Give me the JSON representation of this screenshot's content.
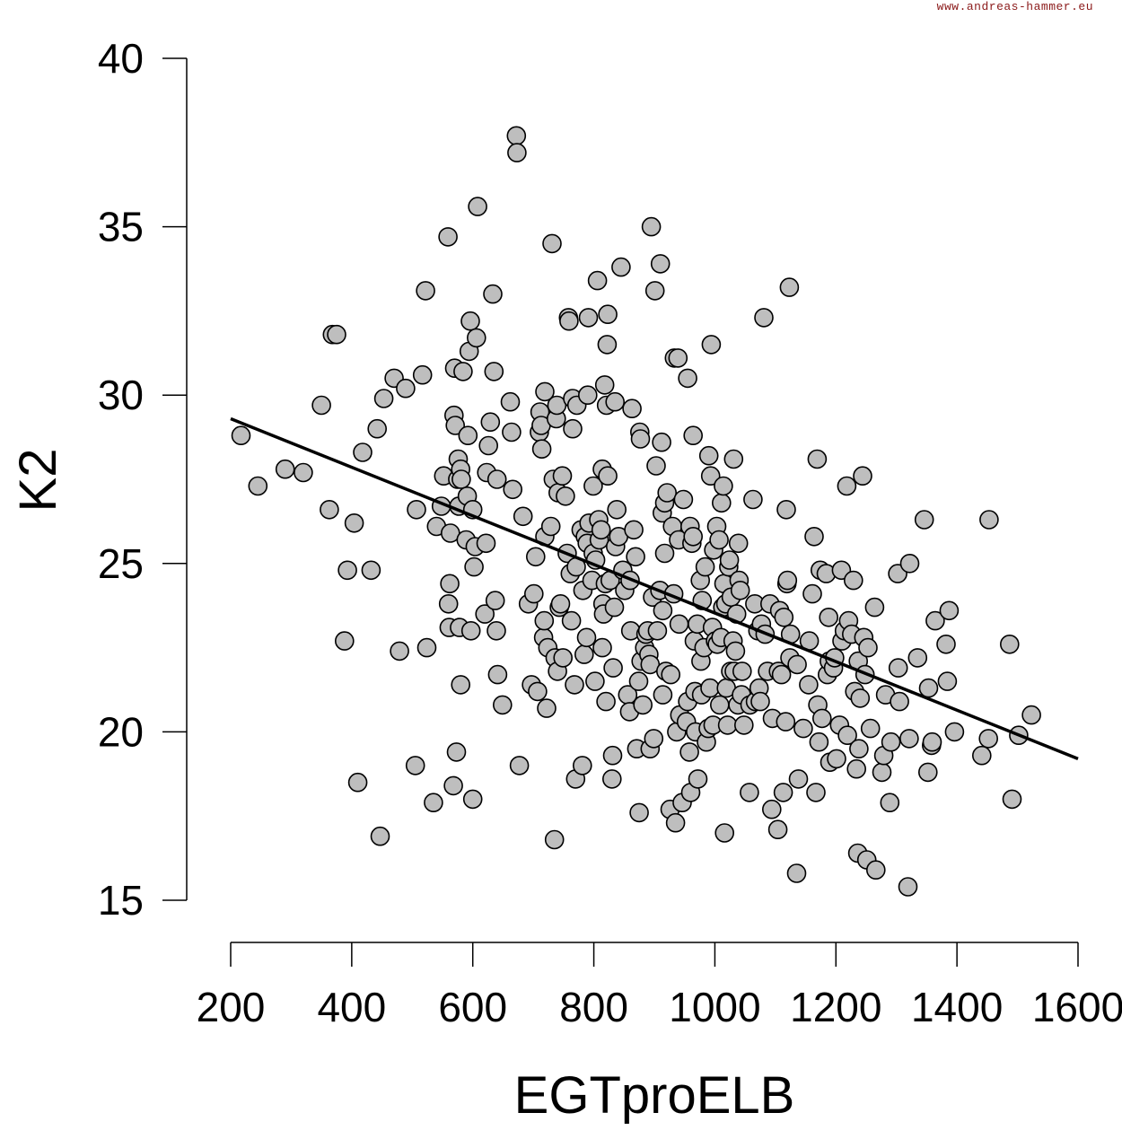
{
  "watermark": "www.andreas-hammer.eu",
  "chart_data": {
    "type": "scatter",
    "xlabel": "EGTproELB",
    "ylabel": "K2",
    "xlim": [
      200,
      1600
    ],
    "ylim": [
      15,
      40
    ],
    "xticks": [
      200,
      400,
      600,
      800,
      1000,
      1200,
      1400,
      1600
    ],
    "yticks": [
      15,
      20,
      25,
      30,
      35,
      40
    ],
    "grid": false,
    "trendline": {
      "x": [
        200,
        1600
      ],
      "y": [
        29.3,
        19.2
      ]
    },
    "points": [
      [
        217,
        28.8
      ],
      [
        245,
        27.3
      ],
      [
        290,
        27.8
      ],
      [
        320,
        27.7
      ],
      [
        350,
        29.7
      ],
      [
        363,
        26.6
      ],
      [
        368,
        31.8
      ],
      [
        375,
        31.8
      ],
      [
        388,
        22.7
      ],
      [
        393,
        24.8
      ],
      [
        404,
        26.2
      ],
      [
        410,
        18.5
      ],
      [
        418,
        28.3
      ],
      [
        432,
        24.8
      ],
      [
        442,
        29.0
      ],
      [
        447,
        16.9
      ],
      [
        453,
        29.9
      ],
      [
        470,
        30.5
      ],
      [
        479,
        22.4
      ],
      [
        489,
        30.2
      ],
      [
        505,
        19.0
      ],
      [
        507,
        26.6
      ],
      [
        517,
        30.6
      ],
      [
        522,
        33.1
      ],
      [
        524,
        22.5
      ],
      [
        535,
        17.9
      ],
      [
        540,
        26.1
      ],
      [
        548,
        26.7
      ],
      [
        552,
        27.6
      ],
      [
        559,
        34.7
      ],
      [
        560,
        23.8
      ],
      [
        561,
        23.1
      ],
      [
        562,
        24.4
      ],
      [
        563,
        25.9
      ],
      [
        568,
        18.4
      ],
      [
        569,
        29.4
      ],
      [
        570,
        30.8
      ],
      [
        571,
        29.1
      ],
      [
        573,
        19.4
      ],
      [
        575,
        27.5
      ],
      [
        576,
        28.1
      ],
      [
        577,
        26.7
      ],
      [
        578,
        23.1
      ],
      [
        580,
        21.4
      ],
      [
        580,
        27.8
      ],
      [
        581,
        27.5
      ],
      [
        584,
        30.7
      ],
      [
        589,
        25.7
      ],
      [
        591,
        27.0
      ],
      [
        592,
        28.8
      ],
      [
        594,
        31.3
      ],
      [
        596,
        32.2
      ],
      [
        597,
        23.0
      ],
      [
        600,
        18.0
      ],
      [
        600,
        26.6
      ],
      [
        602,
        24.9
      ],
      [
        604,
        25.5
      ],
      [
        606,
        31.7
      ],
      [
        608,
        35.6
      ],
      [
        620,
        23.5
      ],
      [
        622,
        25.6
      ],
      [
        623,
        27.7
      ],
      [
        626,
        28.5
      ],
      [
        629,
        29.2
      ],
      [
        633,
        33.0
      ],
      [
        635,
        30.7
      ],
      [
        637,
        23.9
      ],
      [
        639,
        23.0
      ],
      [
        640,
        27.5
      ],
      [
        641,
        21.7
      ],
      [
        649,
        20.8
      ],
      [
        662,
        29.8
      ],
      [
        664,
        28.9
      ],
      [
        666,
        27.2
      ],
      [
        672,
        37.7
      ],
      [
        673,
        37.2
      ],
      [
        677,
        19.0
      ],
      [
        683,
        26.4
      ],
      [
        692,
        23.8
      ],
      [
        697,
        21.4
      ],
      [
        701,
        24.1
      ],
      [
        704,
        25.2
      ],
      [
        707,
        21.2
      ],
      [
        710,
        28.9
      ],
      [
        711,
        29.5
      ],
      [
        713,
        29.1
      ],
      [
        714,
        28.4
      ],
      [
        717,
        22.8
      ],
      [
        718,
        23.3
      ],
      [
        719,
        25.8
      ],
      [
        719,
        30.1
      ],
      [
        722,
        20.7
      ],
      [
        724,
        22.5
      ],
      [
        729,
        26.1
      ],
      [
        731,
        34.5
      ],
      [
        733,
        27.5
      ],
      [
        735,
        16.8
      ],
      [
        736,
        22.2
      ],
      [
        738,
        29.3
      ],
      [
        739,
        29.7
      ],
      [
        740,
        21.8
      ],
      [
        741,
        27.1
      ],
      [
        743,
        23.7
      ],
      [
        745,
        23.8
      ],
      [
        748,
        27.6
      ],
      [
        749,
        22.2
      ],
      [
        753,
        27.0
      ],
      [
        756,
        25.3
      ],
      [
        758,
        32.3
      ],
      [
        759,
        32.2
      ],
      [
        761,
        24.7
      ],
      [
        763,
        23.3
      ],
      [
        765,
        29.9
      ],
      [
        765,
        29.0
      ],
      [
        768,
        21.4
      ],
      [
        770,
        18.6
      ],
      [
        771,
        24.9
      ],
      [
        772,
        29.7
      ],
      [
        779,
        26.0
      ],
      [
        781,
        19.0
      ],
      [
        782,
        24.2
      ],
      [
        784,
        22.3
      ],
      [
        786,
        25.8
      ],
      [
        788,
        22.8
      ],
      [
        789,
        25.6
      ],
      [
        790,
        30.0
      ],
      [
        791,
        32.3
      ],
      [
        792,
        26.2
      ],
      [
        797,
        24.5
      ],
      [
        799,
        27.3
      ],
      [
        799,
        25.3
      ],
      [
        802,
        21.5
      ],
      [
        803,
        25.1
      ],
      [
        806,
        33.4
      ],
      [
        808,
        26.3
      ],
      [
        809,
        25.7
      ],
      [
        812,
        26.0
      ],
      [
        814,
        27.8
      ],
      [
        814,
        22.5
      ],
      [
        815,
        23.8
      ],
      [
        816,
        23.5
      ],
      [
        818,
        30.3
      ],
      [
        819,
        24.4
      ],
      [
        820,
        20.9
      ],
      [
        821,
        29.7
      ],
      [
        822,
        31.5
      ],
      [
        823,
        32.4
      ],
      [
        823,
        27.6
      ],
      [
        827,
        24.5
      ],
      [
        830,
        18.6
      ],
      [
        831,
        19.3
      ],
      [
        832,
        21.9
      ],
      [
        834,
        23.7
      ],
      [
        835,
        29.8
      ],
      [
        836,
        25.5
      ],
      [
        838,
        26.6
      ],
      [
        841,
        25.8
      ],
      [
        845,
        33.8
      ],
      [
        848,
        24.8
      ],
      [
        851,
        24.2
      ],
      [
        856,
        21.1
      ],
      [
        859,
        20.6
      ],
      [
        860,
        24.5
      ],
      [
        861,
        23.0
      ],
      [
        863,
        29.6
      ],
      [
        866,
        26.0
      ],
      [
        869,
        25.2
      ],
      [
        871,
        19.5
      ],
      [
        874,
        21.5
      ],
      [
        875,
        17.6
      ],
      [
        876,
        28.9
      ],
      [
        877,
        28.7
      ],
      [
        878,
        22.1
      ],
      [
        881,
        20.8
      ],
      [
        884,
        22.5
      ],
      [
        886,
        22.9
      ],
      [
        889,
        23.0
      ],
      [
        891,
        22.3
      ],
      [
        893,
        19.5
      ],
      [
        893,
        22.0
      ],
      [
        895,
        35.0
      ],
      [
        897,
        24.0
      ],
      [
        899,
        19.8
      ],
      [
        901,
        33.1
      ],
      [
        903,
        27.9
      ],
      [
        905,
        23.0
      ],
      [
        909,
        24.2
      ],
      [
        910,
        33.9
      ],
      [
        912,
        28.6
      ],
      [
        913,
        26.5
      ],
      [
        914,
        21.1
      ],
      [
        914,
        23.6
      ],
      [
        917,
        26.8
      ],
      [
        917,
        25.3
      ],
      [
        919,
        21.8
      ],
      [
        921,
        27.1
      ],
      [
        926,
        17.7
      ],
      [
        927,
        21.7
      ],
      [
        930,
        26.1
      ],
      [
        932,
        24.1
      ],
      [
        933,
        31.1
      ],
      [
        935,
        17.3
      ],
      [
        937,
        20.0
      ],
      [
        939,
        31.1
      ],
      [
        940,
        25.7
      ],
      [
        941,
        23.2
      ],
      [
        942,
        20.5
      ],
      [
        946,
        17.9
      ],
      [
        948,
        26.9
      ],
      [
        953,
        20.3
      ],
      [
        955,
        30.5
      ],
      [
        955,
        20.9
      ],
      [
        958,
        19.4
      ],
      [
        959,
        26.1
      ],
      [
        960,
        18.2
      ],
      [
        962,
        25.6
      ],
      [
        964,
        25.8
      ],
      [
        964,
        28.8
      ],
      [
        966,
        22.7
      ],
      [
        967,
        21.2
      ],
      [
        968,
        20.0
      ],
      [
        971,
        23.2
      ],
      [
        972,
        18.6
      ],
      [
        976,
        24.5
      ],
      [
        977,
        22.1
      ],
      [
        978,
        21.1
      ],
      [
        979,
        23.9
      ],
      [
        982,
        22.5
      ],
      [
        984,
        24.9
      ],
      [
        986,
        19.7
      ],
      [
        989,
        20.1
      ],
      [
        990,
        28.2
      ],
      [
        992,
        21.3
      ],
      [
        993,
        27.6
      ],
      [
        994,
        31.5
      ],
      [
        996,
        23.1
      ],
      [
        997,
        20.2
      ],
      [
        998,
        25.4
      ],
      [
        1001,
        22.7
      ],
      [
        1003,
        26.1
      ],
      [
        1004,
        22.6
      ],
      [
        1007,
        25.7
      ],
      [
        1008,
        20.8
      ],
      [
        1010,
        22.8
      ],
      [
        1011,
        26.8
      ],
      [
        1013,
        23.7
      ],
      [
        1014,
        27.3
      ],
      [
        1015,
        24.4
      ],
      [
        1016,
        17.0
      ],
      [
        1018,
        23.8
      ],
      [
        1019,
        21.3
      ],
      [
        1021,
        20.2
      ],
      [
        1023,
        24.9
      ],
      [
        1024,
        25.1
      ],
      [
        1026,
        21.8
      ],
      [
        1027,
        24.0
      ],
      [
        1030,
        22.7
      ],
      [
        1031,
        28.1
      ],
      [
        1032,
        21.8
      ],
      [
        1034,
        22.4
      ],
      [
        1036,
        23.5
      ],
      [
        1038,
        20.8
      ],
      [
        1039,
        25.6
      ],
      [
        1040,
        24.5
      ],
      [
        1042,
        24.2
      ],
      [
        1044,
        21.1
      ],
      [
        1045,
        21.8
      ],
      [
        1048,
        20.2
      ],
      [
        1057,
        18.2
      ],
      [
        1058,
        20.8
      ],
      [
        1063,
        26.9
      ],
      [
        1066,
        23.8
      ],
      [
        1067,
        20.9
      ],
      [
        1071,
        23.0
      ],
      [
        1073,
        21.3
      ],
      [
        1075,
        20.9
      ],
      [
        1077,
        23.2
      ],
      [
        1081,
        32.3
      ],
      [
        1083,
        22.9
      ],
      [
        1087,
        21.8
      ],
      [
        1091,
        23.8
      ],
      [
        1094,
        17.7
      ],
      [
        1095,
        20.4
      ],
      [
        1104,
        17.1
      ],
      [
        1105,
        21.8
      ],
      [
        1107,
        23.6
      ],
      [
        1110,
        21.7
      ],
      [
        1113,
        18.2
      ],
      [
        1114,
        23.4
      ],
      [
        1117,
        20.3
      ],
      [
        1118,
        26.6
      ],
      [
        1119,
        24.4
      ],
      [
        1120,
        24.5
      ],
      [
        1123,
        33.2
      ],
      [
        1124,
        22.2
      ],
      [
        1125,
        22.9
      ],
      [
        1135,
        15.8
      ],
      [
        1136,
        22.0
      ],
      [
        1138,
        18.6
      ],
      [
        1146,
        20.1
      ],
      [
        1155,
        21.4
      ],
      [
        1156,
        22.7
      ],
      [
        1161,
        24.1
      ],
      [
        1164,
        25.8
      ],
      [
        1167,
        18.2
      ],
      [
        1169,
        28.1
      ],
      [
        1170,
        20.8
      ],
      [
        1172,
        19.7
      ],
      [
        1174,
        24.8
      ],
      [
        1177,
        20.4
      ],
      [
        1184,
        24.7
      ],
      [
        1186,
        21.7
      ],
      [
        1188,
        23.4
      ],
      [
        1189,
        22.1
      ],
      [
        1190,
        19.1
      ],
      [
        1196,
        21.9
      ],
      [
        1198,
        22.2
      ],
      [
        1201,
        19.2
      ],
      [
        1206,
        20.2
      ],
      [
        1209,
        24.8
      ],
      [
        1210,
        22.7
      ],
      [
        1214,
        23.0
      ],
      [
        1218,
        27.3
      ],
      [
        1219,
        19.9
      ],
      [
        1221,
        23.3
      ],
      [
        1226,
        22.9
      ],
      [
        1229,
        24.5
      ],
      [
        1231,
        21.2
      ],
      [
        1234,
        18.9
      ],
      [
        1236,
        16.4
      ],
      [
        1237,
        22.1
      ],
      [
        1238,
        19.5
      ],
      [
        1240,
        21.0
      ],
      [
        1244,
        27.6
      ],
      [
        1246,
        22.8
      ],
      [
        1248,
        21.7
      ],
      [
        1251,
        16.2
      ],
      [
        1253,
        22.5
      ],
      [
        1257,
        20.1
      ],
      [
        1264,
        23.7
      ],
      [
        1266,
        15.9
      ],
      [
        1276,
        18.8
      ],
      [
        1279,
        19.3
      ],
      [
        1282,
        21.1
      ],
      [
        1289,
        17.9
      ],
      [
        1291,
        19.7
      ],
      [
        1302,
        24.7
      ],
      [
        1303,
        21.9
      ],
      [
        1305,
        20.9
      ],
      [
        1319,
        15.4
      ],
      [
        1321,
        19.8
      ],
      [
        1322,
        25.0
      ],
      [
        1335,
        22.2
      ],
      [
        1346,
        26.3
      ],
      [
        1352,
        18.8
      ],
      [
        1353,
        21.3
      ],
      [
        1358,
        19.6
      ],
      [
        1359,
        19.7
      ],
      [
        1364,
        23.3
      ],
      [
        1382,
        22.6
      ],
      [
        1384,
        21.5
      ],
      [
        1387,
        23.6
      ],
      [
        1396,
        20.0
      ],
      [
        1441,
        19.3
      ],
      [
        1452,
        19.8
      ],
      [
        1453,
        26.3
      ],
      [
        1487,
        22.6
      ],
      [
        1491,
        18.0
      ],
      [
        1502,
        19.9
      ],
      [
        1523,
        20.5
      ]
    ]
  }
}
